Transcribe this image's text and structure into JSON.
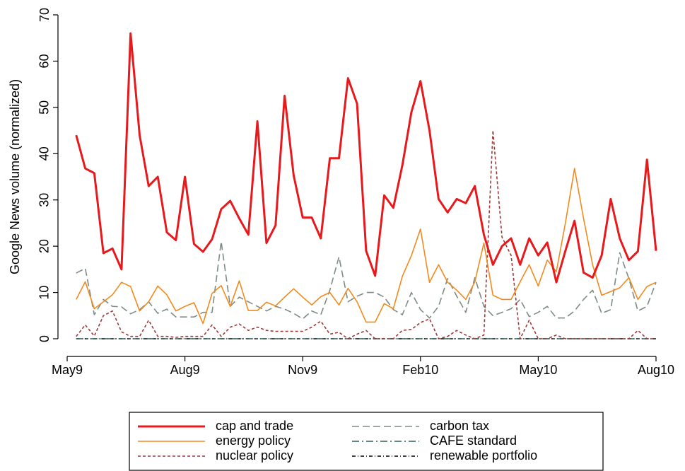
{
  "chart_data": {
    "type": "line",
    "y_label": "Google News volume (normalized)",
    "x": [
      1,
      2,
      3,
      4,
      5,
      6,
      7,
      8,
      9,
      10,
      11,
      12,
      13,
      14,
      15,
      16,
      17,
      18,
      19,
      20,
      21,
      22,
      23,
      24,
      25,
      26,
      27,
      28,
      29,
      30,
      31,
      32,
      33,
      34,
      35,
      36,
      37,
      38,
      39,
      40,
      41,
      42,
      43,
      44,
      45,
      46,
      47,
      48,
      49,
      50,
      51,
      52,
      53,
      54,
      55,
      56,
      57,
      58,
      59,
      60,
      61,
      62,
      63,
      64,
      65
    ],
    "xlim": [
      0,
      65
    ],
    "xticks": [
      {
        "value": 0,
        "label": "May9"
      },
      {
        "value": 13,
        "label": "Aug9"
      },
      {
        "value": 26,
        "label": "Nov9"
      },
      {
        "value": 39,
        "label": "Feb10"
      },
      {
        "value": 52,
        "label": "May10"
      },
      {
        "value": 65,
        "label": "Aug10"
      }
    ],
    "ylim": [
      0,
      70
    ],
    "yticks": [
      0,
      10,
      20,
      30,
      40,
      50,
      60,
      70
    ],
    "grid": false,
    "series": [
      {
        "name": "cap and trade",
        "color": "#e8191c",
        "style": "thick",
        "values": [
          44,
          36.8,
          35.8,
          18.5,
          19.5,
          15,
          66,
          44,
          33,
          35,
          23,
          21.3,
          35,
          20.5,
          18.8,
          21.5,
          28,
          29.8,
          26,
          22.5,
          47,
          20.7,
          24.5,
          52.5,
          35.3,
          26.2,
          26.2,
          21.7,
          39,
          39,
          56.3,
          50.8,
          19,
          13.6,
          31,
          28.3,
          37.5,
          49,
          55.7,
          45,
          30.2,
          27.3,
          30.2,
          29.3,
          33,
          22.5,
          16,
          20,
          21.7,
          16,
          21.7,
          18,
          20.8,
          12.2,
          19,
          25.5,
          14.3,
          13.2,
          18,
          30.2,
          21.7,
          17,
          18.9,
          38.7,
          19
        ]
      },
      {
        "name": "energy policy",
        "color": "#f28a1e",
        "style": "solid",
        "values": [
          8.5,
          12.3,
          6.5,
          8,
          9.5,
          12.2,
          11.3,
          6,
          8,
          11.4,
          9.5,
          6,
          7,
          7.8,
          3.3,
          9.8,
          11.5,
          7,
          12.5,
          6.1,
          6.1,
          7.9,
          7.1,
          9,
          10.8,
          9,
          7.3,
          9.1,
          10,
          7.3,
          10.9,
          8,
          3.6,
          3.6,
          7.6,
          6.5,
          13.5,
          18,
          23.7,
          12.2,
          16,
          12.2,
          10.5,
          8.5,
          12.3,
          20.7,
          9.4,
          8.5,
          8.5,
          12.3,
          16,
          11.4,
          17,
          14.5,
          25,
          36.8,
          26,
          16,
          9.4,
          10.2,
          11,
          13.2,
          8.5,
          11.3,
          12.2
        ]
      },
      {
        "name": "nuclear policy",
        "color": "#9c3a3a",
        "style": "short-dash",
        "values": [
          0.5,
          3,
          0.6,
          5,
          6,
          1.5,
          0.5,
          0.5,
          4,
          0.5,
          0.5,
          0.3,
          0.5,
          0.5,
          0.5,
          3,
          0.5,
          2.5,
          3.2,
          1.8,
          2.5,
          1.8,
          1.6,
          1.6,
          1.6,
          1.6,
          2.5,
          3.8,
          1,
          1.4,
          0,
          1,
          1.8,
          0,
          0,
          0,
          1.8,
          2,
          3.5,
          4.3,
          0,
          0.5,
          1.8,
          0.8,
          0,
          0.8,
          45,
          22,
          18,
          0,
          4,
          0,
          0,
          0.8,
          0,
          0,
          0,
          0,
          0,
          0,
          0,
          0,
          1.8,
          0,
          0
        ]
      },
      {
        "name": "carbon tax",
        "color": "#7d8c86",
        "style": "long-dash",
        "values": [
          14.2,
          15.2,
          5.2,
          8.5,
          7,
          6.9,
          5.4,
          6.3,
          8,
          5.5,
          6.4,
          4.7,
          4.7,
          4.7,
          5.7,
          5.7,
          21,
          7,
          9,
          8,
          7,
          6,
          7,
          6.4,
          5.5,
          4.3,
          6,
          5.2,
          10.5,
          17.7,
          8,
          9.2,
          10,
          10,
          9,
          6.3,
          5.2,
          10,
          6.3,
          4.5,
          7,
          13,
          9.2,
          5.7,
          13.2,
          7,
          5,
          5.7,
          6.5,
          8.5,
          4.8,
          5.7,
          7,
          4.5,
          4.5,
          6,
          8.5,
          10.5,
          5.5,
          6.3,
          18.6,
          13,
          6,
          7,
          12.2
        ]
      },
      {
        "name": "CAFE standard",
        "color": "#2e5e58",
        "style": "dash-dot",
        "values": [
          0,
          0,
          0,
          0,
          0,
          0,
          0,
          0,
          0,
          0,
          0,
          0,
          0,
          0,
          0,
          0,
          0,
          0,
          0,
          0,
          0,
          0,
          0,
          0,
          0,
          0,
          0,
          0,
          0,
          0,
          0,
          0,
          0,
          0,
          0,
          0,
          0,
          0,
          0,
          0,
          0,
          0,
          0,
          0,
          0,
          0,
          0,
          0,
          0,
          0,
          0,
          0,
          0,
          0,
          0,
          0,
          0,
          0,
          0,
          0,
          0,
          0,
          0,
          0,
          0
        ]
      },
      {
        "name": "renewable portfolio",
        "color": "#000000",
        "style": "fine-dash-dot",
        "values": [
          0,
          0,
          0,
          0,
          0,
          0,
          0,
          0,
          0,
          0,
          0,
          0,
          0,
          0,
          0,
          0,
          0,
          0,
          0,
          0,
          0,
          0,
          0,
          0,
          0,
          0,
          0,
          0,
          0,
          0,
          0,
          0,
          0,
          0,
          0,
          0,
          0,
          0,
          0,
          0,
          0,
          0,
          0,
          0,
          0,
          0,
          0,
          0,
          0,
          0,
          0,
          0,
          0,
          0,
          0,
          0,
          0,
          0,
          0,
          0,
          0,
          0,
          0,
          0,
          0
        ]
      }
    ]
  }
}
